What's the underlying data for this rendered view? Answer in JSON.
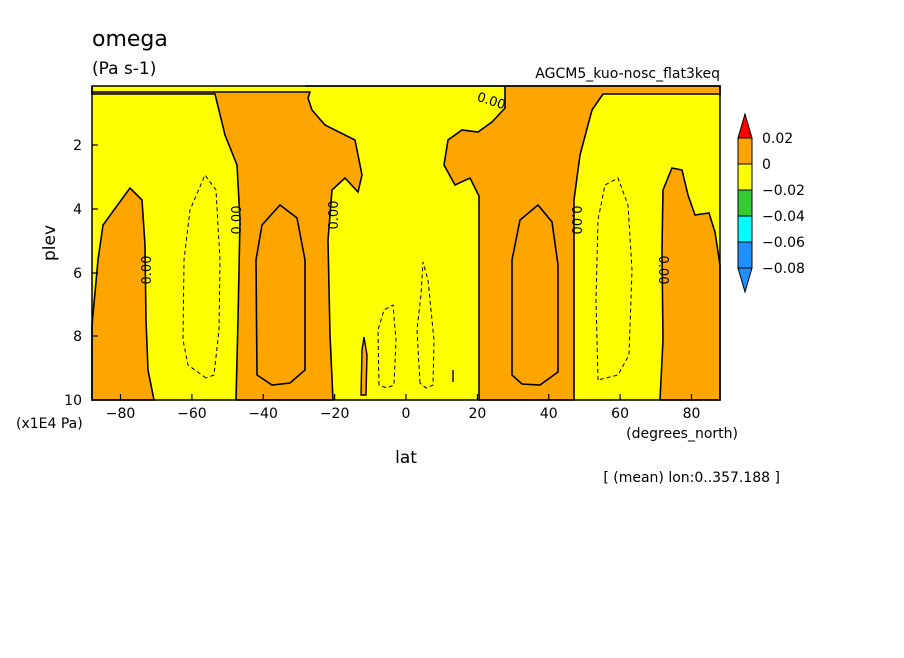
{
  "chart_data": {
    "type": "contour",
    "title": "omega",
    "units": "(Pa s-1)",
    "subtitle": "AGCM5_kuo-nosc_flat3keq",
    "xlabel": "lat",
    "xunits": "(degrees_north)",
    "ylabel": "plev",
    "yunits": "(x1E4 Pa)",
    "footnote": "[ (mean) lon:0..357.188 ]",
    "xlim": [
      -88,
      88
    ],
    "ylim": [
      10,
      0.2
    ],
    "x_ticks": [
      -80,
      -60,
      -40,
      -20,
      0,
      20,
      40,
      60,
      80
    ],
    "x_tick_labels": [
      "−80",
      "−60",
      "−40",
      "−20",
      "0",
      "20",
      "40",
      "60",
      "80"
    ],
    "y_ticks": [
      2,
      4,
      6,
      8,
      10
    ],
    "y_tick_labels": [
      "2",
      "4",
      "6",
      "8",
      "10"
    ],
    "contour_labels": [
      "0.00",
      "0.00",
      "0.00",
      "0.00",
      "0.00",
      "0.00",
      "0.00"
    ],
    "colorbar": {
      "levels": [
        "0.02",
        "0",
        "−0.02",
        "−0.04",
        "−0.06",
        "−0.08"
      ],
      "colors": [
        "#ff0000",
        "#ffa500",
        "#ffff00",
        "#33cc33",
        "#00ffff",
        "#1e90ff",
        "#1e90ff"
      ]
    },
    "positive_regions": [
      {
        "lat": [
          -88,
          -72
        ],
        "plev": [
          3.4,
          10
        ]
      },
      {
        "lat": [
          -57,
          -20
        ],
        "plev": [
          0.2,
          10
        ]
      },
      {
        "lat": [
          -28,
          28
        ],
        "plev": [
          0.2,
          0.5
        ]
      },
      {
        "lat": [
          20,
          57
        ],
        "plev": [
          0.2,
          10
        ]
      },
      {
        "lat": [
          70,
          88
        ],
        "plev": [
          2.8,
          10
        ]
      }
    ]
  }
}
